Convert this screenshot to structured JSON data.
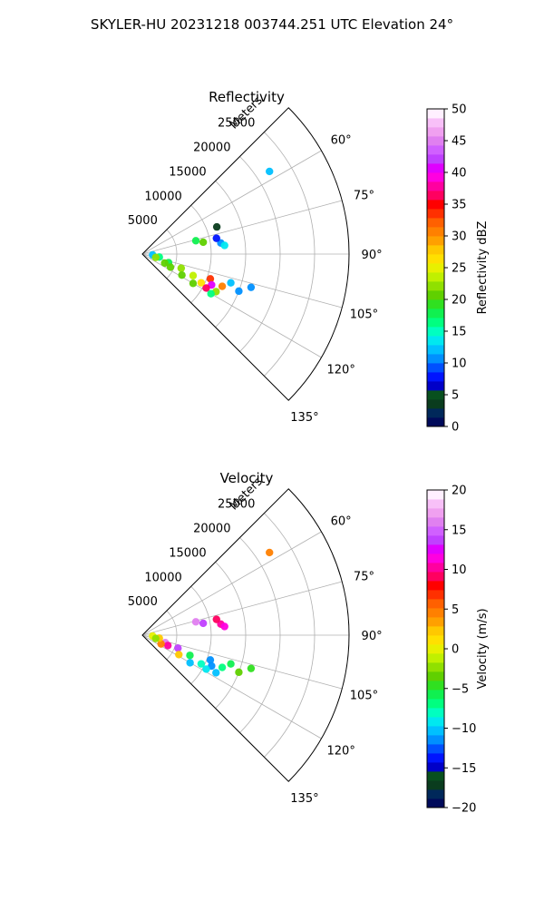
{
  "figure": {
    "title": "SKYLER-HU  20231218  003744.251 UTC Elevation 24°"
  },
  "chart_data": [
    {
      "type": "polar-ppi",
      "title": "Reflectivity",
      "range_label": "Meters",
      "range_ticks": [
        "5000",
        "10000",
        "15000",
        "20000",
        "25000"
      ],
      "range_tick_values": [
        5000,
        10000,
        15000,
        20000,
        25000
      ],
      "range_max": 30000,
      "azimuth_ticks": [
        "60°",
        "75°",
        "90°",
        "105°",
        "120°",
        "135°"
      ],
      "azimuth_tick_values": [
        60,
        75,
        90,
        105,
        120,
        135
      ],
      "azimuth_range": [
        45,
        135
      ],
      "grid": true,
      "colorbar": {
        "label": "Reflectivity dBZ",
        "min": 0,
        "max": 50,
        "ticks": [
          "0",
          "5",
          "10",
          "15",
          "20",
          "25",
          "30",
          "35",
          "40",
          "45",
          "50"
        ],
        "tick_values": [
          0,
          5,
          10,
          15,
          20,
          25,
          30,
          35,
          40,
          45,
          50
        ],
        "colors": [
          "#000a5a",
          "#00285a",
          "#0a3c1e",
          "#08501e",
          "#0000c8",
          "#0014ff",
          "#0050ff",
          "#0090ff",
          "#00c0ff",
          "#00e8f0",
          "#00ffc0",
          "#00ff80",
          "#10f050",
          "#30e020",
          "#60d000",
          "#90e000",
          "#c0f000",
          "#e8f000",
          "#ffe000",
          "#ffc800",
          "#ffa000",
          "#ff8000",
          "#ff6000",
          "#ff3000",
          "#ff0000",
          "#ff0060",
          "#ff00a0",
          "#ff00e0",
          "#e000ff",
          "#c040ff",
          "#d060ff",
          "#e080f0",
          "#f0a0f0",
          "#f8c0f8",
          "#fff0ff"
        ]
      },
      "echoes": [
        {
          "az": 108,
          "r": 4000,
          "v": 18
        },
        {
          "az": 112,
          "r": 3500,
          "v": 20
        },
        {
          "az": 115,
          "r": 4500,
          "v": 20
        },
        {
          "az": 110,
          "r": 6000,
          "v": 22
        },
        {
          "az": 118,
          "r": 6500,
          "v": 21
        },
        {
          "az": 113,
          "r": 8000,
          "v": 24
        },
        {
          "az": 120,
          "r": 8500,
          "v": 20
        },
        {
          "az": 116,
          "r": 9500,
          "v": 26
        },
        {
          "az": 110,
          "r": 10500,
          "v": 34
        },
        {
          "az": 114,
          "r": 11000,
          "v": 40
        },
        {
          "az": 118,
          "r": 10500,
          "v": 36
        },
        {
          "az": 112,
          "r": 12500,
          "v": 30
        },
        {
          "az": 117,
          "r": 12000,
          "v": 22
        },
        {
          "az": 120,
          "r": 11500,
          "v": 16
        },
        {
          "az": 108,
          "r": 13500,
          "v": 12
        },
        {
          "az": 111,
          "r": 15000,
          "v": 10
        },
        {
          "az": 107,
          "r": 16500,
          "v": 10
        },
        {
          "az": 100,
          "r": 2500,
          "v": 16
        },
        {
          "az": 95,
          "r": 1500,
          "v": 12
        },
        {
          "az": 104,
          "r": 2000,
          "v": 22
        },
        {
          "az": 76,
          "r": 8000,
          "v": 18
        },
        {
          "az": 79,
          "r": 9000,
          "v": 20
        },
        {
          "az": 82,
          "r": 11500,
          "v": 10
        },
        {
          "az": 78,
          "r": 11000,
          "v": 8
        },
        {
          "az": 84,
          "r": 12000,
          "v": 14
        },
        {
          "az": 70,
          "r": 11500,
          "v": 4
        },
        {
          "az": 57,
          "r": 22000,
          "v": 12
        }
      ]
    },
    {
      "type": "polar-ppi",
      "title": "Velocity",
      "range_label": "Meters",
      "range_ticks": [
        "5000",
        "10000",
        "15000",
        "20000",
        "25000"
      ],
      "range_tick_values": [
        5000,
        10000,
        15000,
        20000,
        25000
      ],
      "range_max": 30000,
      "azimuth_ticks": [
        "60°",
        "75°",
        "90°",
        "105°",
        "120°",
        "135°"
      ],
      "azimuth_tick_values": [
        60,
        75,
        90,
        105,
        120,
        135
      ],
      "azimuth_range": [
        45,
        135
      ],
      "grid": true,
      "colorbar": {
        "label": "Velocity (m/s)",
        "min": -20,
        "max": 20,
        "ticks": [
          "−20",
          "−15",
          "−10",
          "−5",
          "0",
          "5",
          "10",
          "15",
          "20"
        ],
        "tick_values": [
          -20,
          -15,
          -10,
          -5,
          0,
          5,
          10,
          15,
          20
        ],
        "colors": [
          "#000a5a",
          "#00285a",
          "#0a3c1e",
          "#08501e",
          "#0000c8",
          "#0014ff",
          "#0050ff",
          "#0090ff",
          "#00c0ff",
          "#00e8f0",
          "#00ffc0",
          "#00ff80",
          "#10f050",
          "#30e020",
          "#60d000",
          "#90e000",
          "#c0f000",
          "#e8f000",
          "#ffe000",
          "#ffc800",
          "#ffa000",
          "#ff8000",
          "#ff6000",
          "#ff3000",
          "#ff0000",
          "#ff0060",
          "#ff00a0",
          "#ff00e0",
          "#e000ff",
          "#c040ff",
          "#d060ff",
          "#e080f0",
          "#f0a0f0",
          "#f8c0f8",
          "#fff0ff"
        ]
      },
      "echoes": [
        {
          "az": 108,
          "r": 3500,
          "v": 16
        },
        {
          "az": 112,
          "r": 4000,
          "v": 10
        },
        {
          "az": 115,
          "r": 3000,
          "v": 5
        },
        {
          "az": 110,
          "r": 5500,
          "v": 14
        },
        {
          "az": 118,
          "r": 6000,
          "v": 2
        },
        {
          "az": 113,
          "r": 7500,
          "v": -6
        },
        {
          "az": 120,
          "r": 8000,
          "v": -10
        },
        {
          "az": 116,
          "r": 9500,
          "v": -8
        },
        {
          "az": 110,
          "r": 10500,
          "v": -11
        },
        {
          "az": 114,
          "r": 11000,
          "v": -12
        },
        {
          "az": 118,
          "r": 10500,
          "v": -9
        },
        {
          "az": 112,
          "r": 12500,
          "v": -7
        },
        {
          "az": 117,
          "r": 12000,
          "v": -10
        },
        {
          "az": 108,
          "r": 13500,
          "v": -6
        },
        {
          "az": 111,
          "r": 15000,
          "v": -4
        },
        {
          "az": 107,
          "r": 16500,
          "v": -5
        },
        {
          "az": 100,
          "r": 2500,
          "v": 2
        },
        {
          "az": 95,
          "r": 1500,
          "v": 0
        },
        {
          "az": 104,
          "r": 2000,
          "v": -2
        },
        {
          "az": 76,
          "r": 8000,
          "v": 16
        },
        {
          "az": 79,
          "r": 9000,
          "v": 14
        },
        {
          "az": 82,
          "r": 11500,
          "v": 10
        },
        {
          "az": 78,
          "r": 11000,
          "v": 9
        },
        {
          "az": 84,
          "r": 12000,
          "v": 11
        },
        {
          "az": 57,
          "r": 22000,
          "v": 4
        }
      ]
    }
  ]
}
